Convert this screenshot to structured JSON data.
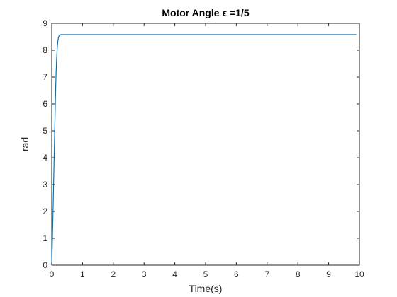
{
  "chart_data": {
    "type": "line",
    "title": "Motor Angle ϵ =1/5",
    "xlabel": "Time(s)",
    "ylabel": "rad",
    "xlim": [
      0,
      10
    ],
    "ylim": [
      0,
      9
    ],
    "xticks": [
      "0",
      "1",
      "2",
      "3",
      "4",
      "5",
      "6",
      "7",
      "8",
      "9",
      "10"
    ],
    "yticks": [
      "0",
      "1",
      "2",
      "3",
      "4",
      "5",
      "6",
      "7",
      "8",
      "9"
    ],
    "grid": false,
    "series": [
      {
        "color": "#0072BD",
        "x": [
          0,
          0.02,
          0.04,
          0.06,
          0.08,
          0.1,
          0.12,
          0.14,
          0.16,
          0.18,
          0.2,
          0.22,
          0.25,
          0.3,
          0.35,
          0.4,
          0.5,
          1,
          2,
          3,
          4,
          5,
          6,
          7,
          8,
          9,
          9.9
        ],
        "y": [
          0,
          0.9,
          1.9,
          3.0,
          4.1,
          5.2,
          6.2,
          7.1,
          7.7,
          8.1,
          8.35,
          8.48,
          8.55,
          8.58,
          8.58,
          8.58,
          8.58,
          8.58,
          8.58,
          8.58,
          8.58,
          8.58,
          8.58,
          8.58,
          8.58,
          8.58,
          8.58
        ]
      }
    ]
  }
}
